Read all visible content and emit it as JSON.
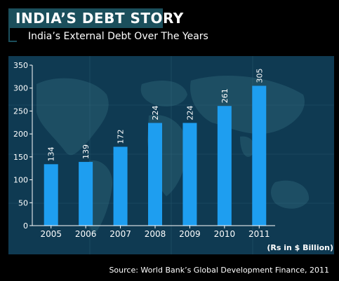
{
  "header": {
    "title": "INDIA’S DEBT STORY",
    "subtitle": "India’s External Debt Over The Years"
  },
  "chart_data": {
    "type": "bar",
    "title": "India’s External Debt Over The Years",
    "xlabel": "",
    "ylabel": "",
    "categories": [
      "2005",
      "2006",
      "2007",
      "2008",
      "2009",
      "2010",
      "2011"
    ],
    "values": [
      134,
      139,
      172,
      224,
      224,
      261,
      305
    ],
    "ylim": [
      0,
      350
    ],
    "yticks": [
      0,
      50,
      100,
      150,
      200,
      250,
      300,
      350
    ],
    "unit_note": "(Rs in $ Billion)",
    "grid": false,
    "bar_color": "#1e9ef0"
  },
  "footer": {
    "source": "Source: World Bank’s Global Development Finance, 2011"
  }
}
